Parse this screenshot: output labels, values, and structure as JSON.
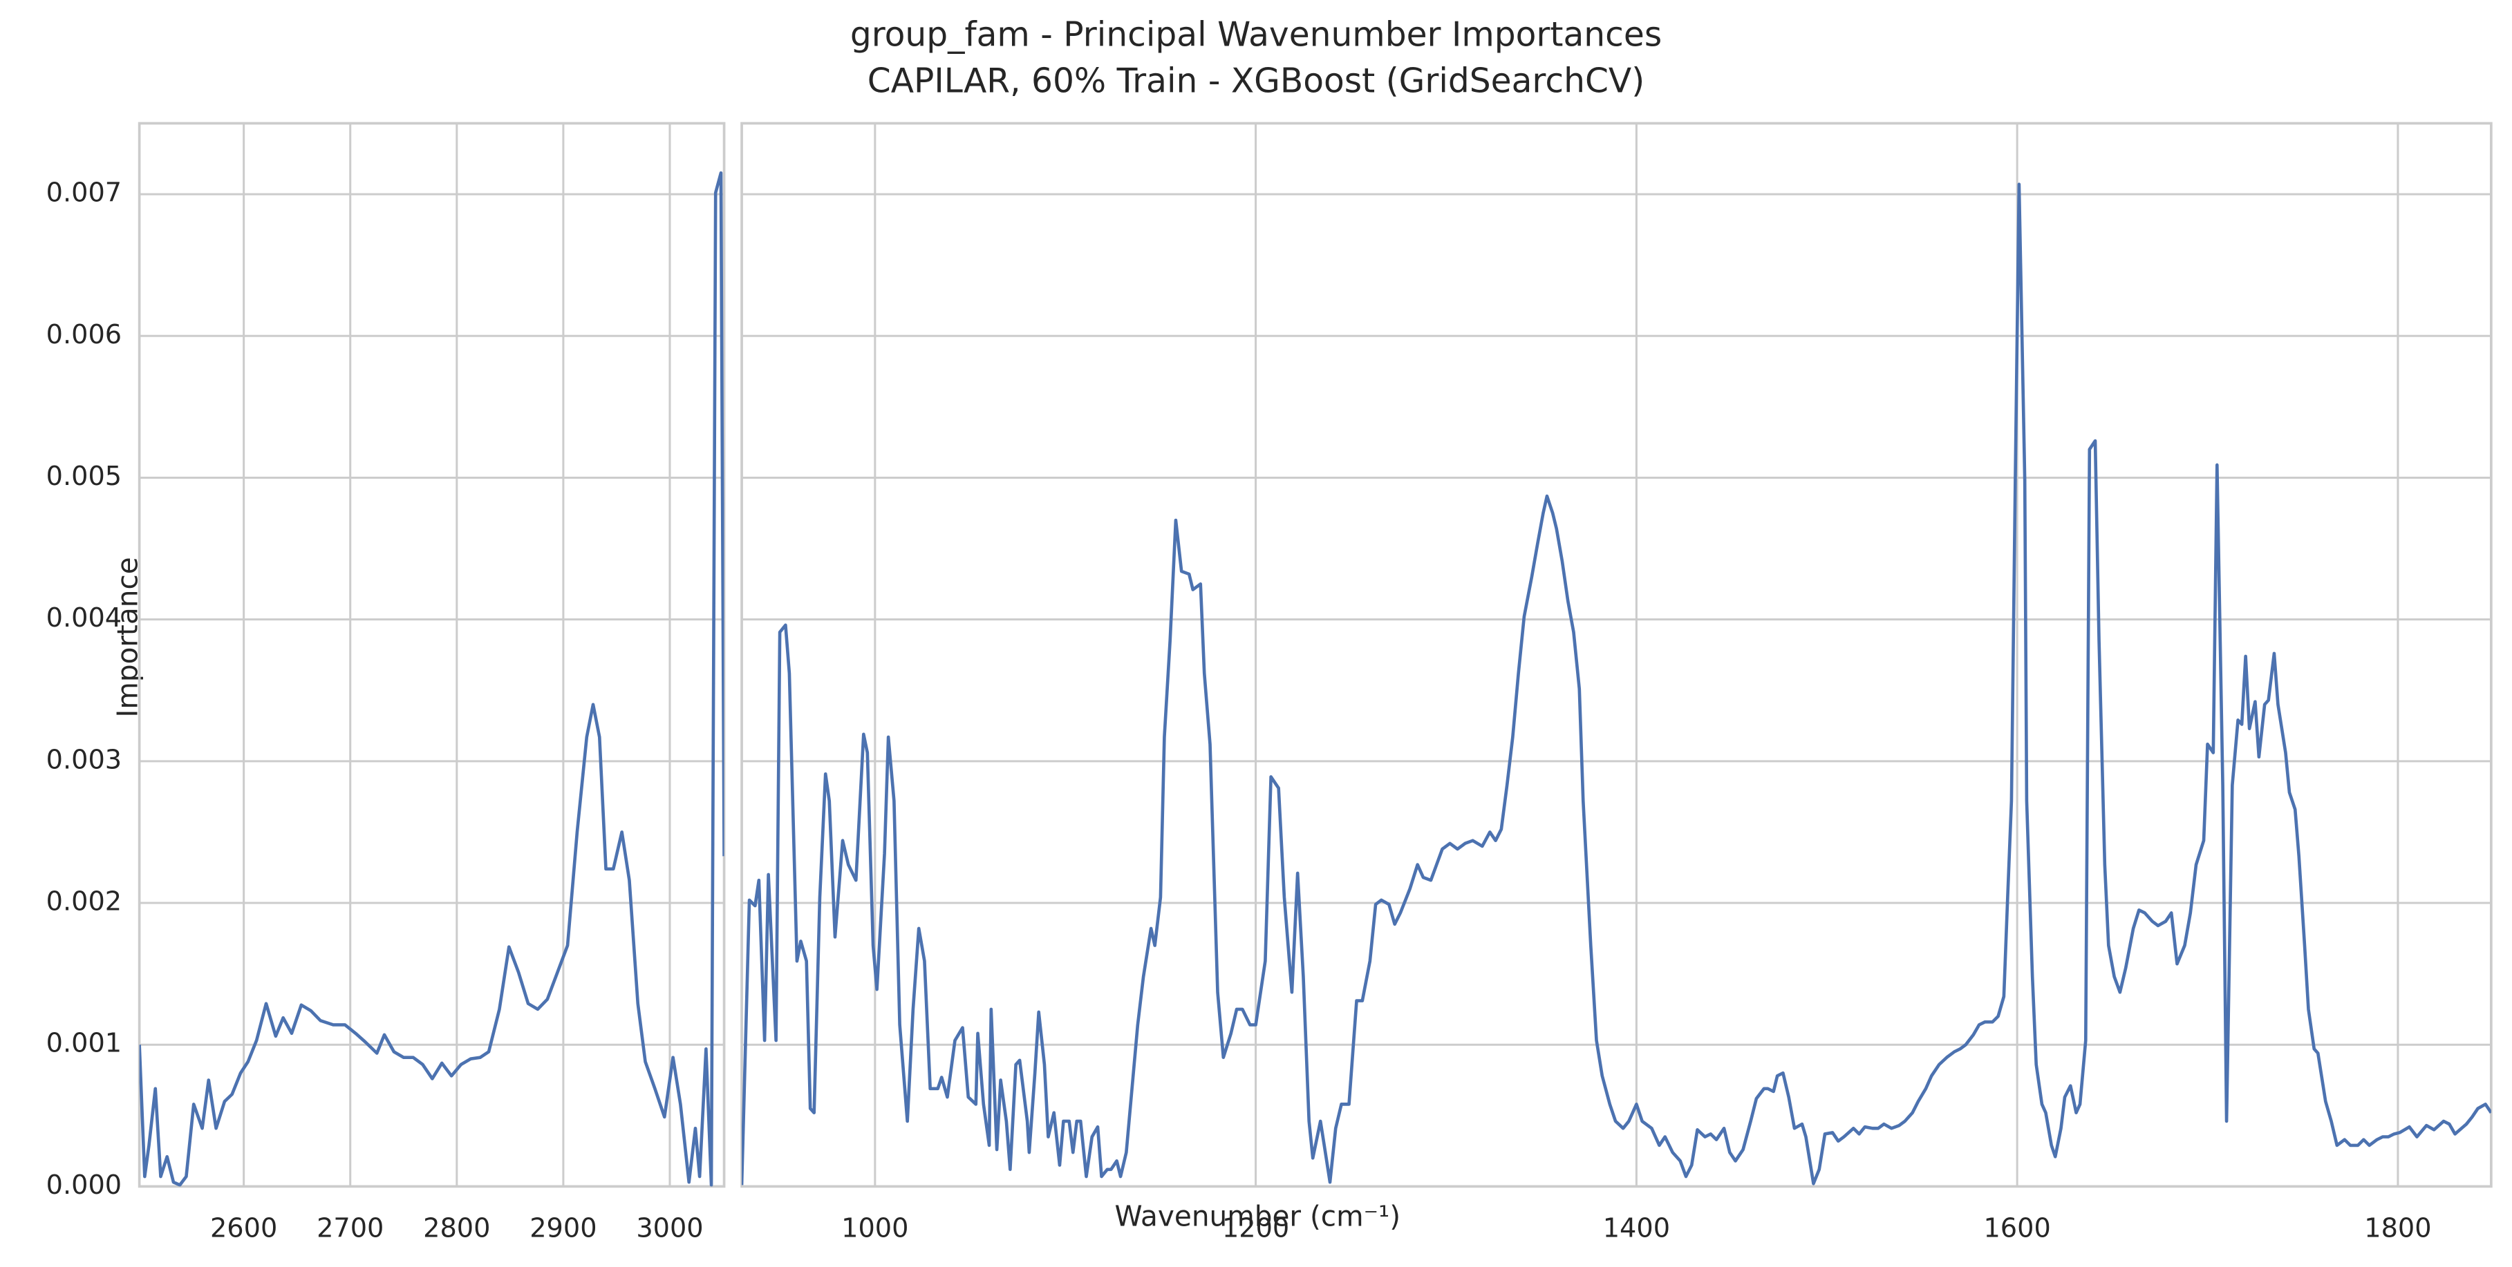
{
  "chart_data": [
    {
      "type": "line",
      "title": "group_fam - Principal Wavenumber Importances",
      "subtitle": "CAPILAR, 60% Train - XGBoost (GridSearchCV)",
      "ylabel": "Importance",
      "xlim": [
        2502,
        3051
      ],
      "xticks": [
        2600,
        2700,
        2800,
        2900,
        3000
      ],
      "ylim": [
        0,
        0.0075
      ],
      "yticks": [
        {
          "value": 0,
          "label": "0.000"
        },
        {
          "value": 0.001,
          "label": "0.001"
        },
        {
          "value": 0.002,
          "label": "0.002"
        },
        {
          "value": 0.003,
          "label": "0.003"
        },
        {
          "value": 0.004,
          "label": "0.004"
        },
        {
          "value": 0.005,
          "label": "0.005"
        },
        {
          "value": 0.006,
          "label": "0.006"
        },
        {
          "value": 0.007,
          "label": "0.007"
        }
      ],
      "grid": true,
      "x": [
        2502,
        2507,
        2511,
        2517,
        2522,
        2528,
        2534,
        2540,
        2546,
        2553,
        2561,
        2567,
        2574,
        2582,
        2589,
        2597,
        2604,
        2612,
        2621,
        2630,
        2637,
        2645,
        2654,
        2663,
        2672,
        2684,
        2695,
        2705,
        2714,
        2725,
        2732,
        2741,
        2750,
        2759,
        2768,
        2777,
        2786,
        2795,
        2804,
        2813,
        2822,
        2830,
        2840,
        2849,
        2858,
        2867,
        2876,
        2885,
        2895,
        2904,
        2913,
        2922,
        2928,
        2934,
        2940,
        2947,
        2955,
        2962,
        2970,
        2977,
        2986,
        2995,
        3003,
        3010,
        3018,
        3024,
        3028,
        3034,
        3039,
        3043,
        3048,
        3051
      ],
      "series": [
        {
          "color": "#4c72b0",
          "values": [
            0.001,
            7e-05,
            0.00029,
            0.00069,
            7e-05,
            0.00021,
            3e-05,
            1e-05,
            7e-05,
            0.00058,
            0.00041,
            0.00075,
            0.00041,
            0.0006,
            0.00065,
            0.0008,
            0.00088,
            0.00103,
            0.00129,
            0.00106,
            0.00119,
            0.00108,
            0.00128,
            0.00124,
            0.00117,
            0.00114,
            0.00114,
            0.00108,
            0.00102,
            0.00094,
            0.00107,
            0.00095,
            0.00091,
            0.00091,
            0.00086,
            0.00076,
            0.00087,
            0.00078,
            0.00086,
            0.0009,
            0.00091,
            0.00095,
            0.00125,
            0.00169,
            0.00151,
            0.00129,
            0.00125,
            0.00132,
            0.00152,
            0.0017,
            0.0025,
            0.00317,
            0.0034,
            0.00317,
            0.00224,
            0.00224,
            0.0025,
            0.00216,
            0.00129,
            0.00088,
            0.00069,
            0.00049,
            0.00091,
            0.00058,
            3e-05,
            0.00041,
            7e-05,
            0.00097,
            1e-05,
            0.00701,
            0.00715,
            0.00233
          ]
        }
      ]
    },
    {
      "type": "line",
      "xlabel": "Wavenumber (cm⁻¹)",
      "xlim": [
        930,
        1849
      ],
      "xticks": [
        1000,
        1200,
        1400,
        1600,
        1800
      ],
      "ylim": [
        0,
        0.0075
      ],
      "yticks": [
        0,
        0.001,
        0.002,
        0.003,
        0.004,
        0.005,
        0.006,
        0.007
      ],
      "grid": true,
      "x": [
        930,
        934,
        937,
        939,
        942,
        944,
        948,
        950,
        953,
        955,
        959,
        961,
        964,
        966,
        968,
        971,
        974,
        976,
        979,
        983,
        986,
        990,
        994,
        996,
        999,
        1001,
        1005,
        1007,
        1010,
        1013,
        1017,
        1020,
        1023,
        1026,
        1029,
        1033,
        1035,
        1038,
        1042,
        1046,
        1049,
        1053,
        1054,
        1057,
        1060,
        1061,
        1064,
        1066,
        1069,
        1071,
        1074,
        1076,
        1080,
        1081,
        1084,
        1086,
        1089,
        1091,
        1094,
        1097,
        1099,
        1102,
        1104,
        1106,
        1108,
        1111,
        1114,
        1117,
        1119,
        1122,
        1124,
        1127,
        1129,
        1132,
        1135,
        1138,
        1141,
        1145,
        1147,
        1150,
        1152,
        1155,
        1158,
        1161,
        1165,
        1167,
        1171,
        1173,
        1176,
        1180,
        1183,
        1187,
        1190,
        1193,
        1197,
        1200,
        1205,
        1208,
        1212,
        1215,
        1219,
        1222,
        1225,
        1228,
        1230,
        1234,
        1236,
        1239,
        1242,
        1245,
        1249,
        1253,
        1256,
        1260,
        1263,
        1266,
        1270,
        1273,
        1276,
        1281,
        1285,
        1288,
        1292,
        1295,
        1298,
        1302,
        1306,
        1310,
        1314,
        1319,
        1323,
        1326,
        1329,
        1332,
        1335,
        1338,
        1341,
        1345,
        1348,
        1351,
        1353,
        1356,
        1358,
        1361,
        1364,
        1367,
        1370,
        1372,
        1376,
        1379,
        1382,
        1386,
        1389,
        1393,
        1396,
        1400,
        1403,
        1408,
        1412,
        1415,
        1419,
        1423,
        1426,
        1429,
        1432,
        1436,
        1439,
        1442,
        1446,
        1449,
        1452,
        1456,
        1460,
        1463,
        1467,
        1469,
        1472,
        1474,
        1477,
        1480,
        1483,
        1487,
        1489,
        1493,
        1496,
        1499,
        1503,
        1506,
        1509,
        1514,
        1517,
        1520,
        1524,
        1527,
        1530,
        1534,
        1538,
        1541,
        1545,
        1548,
        1552,
        1555,
        1559,
        1563,
        1567,
        1570,
        1573,
        1577,
        1580,
        1583,
        1587,
        1590,
        1593,
        1595,
        1597,
        1599,
        1601,
        1604,
        1605,
        1608,
        1610,
        1613,
        1615,
        1618,
        1620,
        1623,
        1625,
        1628,
        1631,
        1633,
        1636,
        1638,
        1641,
        1643,
        1646,
        1648,
        1651,
        1654,
        1657,
        1661,
        1664,
        1667,
        1671,
        1674,
        1678,
        1681,
        1684,
        1688,
        1691,
        1694,
        1698,
        1700,
        1703,
        1705,
        1708,
        1710,
        1713,
        1716,
        1718,
        1720,
        1722,
        1725,
        1727,
        1730,
        1732,
        1735,
        1737,
        1741,
        1743,
        1746,
        1748,
        1751,
        1753,
        1756,
        1758,
        1762,
        1765,
        1768,
        1772,
        1775,
        1779,
        1782,
        1785,
        1789,
        1792,
        1795,
        1798,
        1801,
        1806,
        1810,
        1815,
        1819,
        1824,
        1827,
        1830,
        1836,
        1839,
        1842,
        1846,
        1849
      ],
      "series": [
        {
          "color": "#4c72b0",
          "values": [
            1e-05,
            0.00202,
            0.00198,
            0.00216,
            0.00103,
            0.0022,
            0.00103,
            0.00391,
            0.00396,
            0.00362,
            0.00159,
            0.00173,
            0.00159,
            0.00055,
            0.00052,
            0.00204,
            0.00291,
            0.00272,
            0.00176,
            0.00244,
            0.00227,
            0.00216,
            0.00319,
            0.00306,
            0.0017,
            0.00139,
            0.00235,
            0.00317,
            0.00272,
            0.00114,
            0.00046,
            0.00125,
            0.00182,
            0.00159,
            0.00069,
            0.00069,
            0.00077,
            0.00063,
            0.00103,
            0.00112,
            0.00063,
            0.00058,
            0.00108,
            0.00058,
            0.00029,
            0.00125,
            0.00026,
            0.00075,
            0.00046,
            0.00012,
            0.00086,
            0.00089,
            0.00046,
            0.00024,
            0.0008,
            0.00123,
            0.00086,
            0.00035,
            0.00052,
            0.00015,
            0.00046,
            0.00046,
            0.00024,
            0.00046,
            0.00046,
            7e-05,
            0.00035,
            0.00042,
            7e-05,
            0.00012,
            0.00012,
            0.00018,
            7e-05,
            0.00024,
            0.00069,
            0.00114,
            0.00148,
            0.00182,
            0.0017,
            0.00204,
            0.00317,
            0.00385,
            0.0047,
            0.00434,
            0.00432,
            0.00421,
            0.00425,
            0.00362,
            0.00312,
            0.00137,
            0.00091,
            0.00108,
            0.00125,
            0.00125,
            0.00114,
            0.00114,
            0.00159,
            0.00289,
            0.00281,
            0.00204,
            0.00137,
            0.00221,
            0.00148,
            0.00046,
            0.0002,
            0.00046,
            0.00029,
            3e-05,
            0.00041,
            0.00058,
            0.00058,
            0.00131,
            0.00131,
            0.00159,
            0.00199,
            0.00202,
            0.00199,
            0.00185,
            0.00193,
            0.0021,
            0.00227,
            0.00218,
            0.00216,
            0.00227,
            0.00238,
            0.00242,
            0.00238,
            0.00242,
            0.00244,
            0.0024,
            0.0025,
            0.00244,
            0.00252,
            0.00283,
            0.00317,
            0.00362,
            0.00402,
            0.0043,
            0.00453,
            0.00475,
            0.00487,
            0.00475,
            0.00464,
            0.00441,
            0.00413,
            0.00391,
            0.00351,
            0.00272,
            0.0017,
            0.00103,
            0.00078,
            0.00058,
            0.00046,
            0.00041,
            0.00046,
            0.00058,
            0.00046,
            0.00041,
            0.00029,
            0.00035,
            0.00024,
            0.00018,
            7e-05,
            0.00015,
            0.0004,
            0.00035,
            0.00037,
            0.00033,
            0.00041,
            0.00024,
            0.00018,
            0.00026,
            0.00046,
            0.00062,
            0.00069,
            0.00069,
            0.00067,
            0.00078,
            0.0008,
            0.00063,
            0.00041,
            0.00044,
            0.00035,
            2e-05,
            0.00012,
            0.00037,
            0.00038,
            0.00032,
            0.00035,
            0.00041,
            0.00037,
            0.00042,
            0.00041,
            0.00041,
            0.00044,
            0.00041,
            0.00043,
            0.00046,
            0.00052,
            0.0006,
            0.00069,
            0.00078,
            0.00086,
            0.00091,
            0.00095,
            0.00097,
            0.001,
            0.00107,
            0.00114,
            0.00116,
            0.00116,
            0.0012,
            0.00134,
            0.00204,
            0.00272,
            0.00498,
            0.00707,
            0.00498,
            0.00272,
            0.00148,
            0.00086,
            0.00058,
            0.00052,
            0.00029,
            0.00021,
            0.00041,
            0.00063,
            0.00071,
            0.00052,
            0.00058,
            0.00103,
            0.0052,
            0.00526,
            0.00385,
            0.00227,
            0.0017,
            0.00148,
            0.00137,
            0.00154,
            0.00182,
            0.00195,
            0.00193,
            0.00187,
            0.00184,
            0.00187,
            0.00193,
            0.00157,
            0.0017,
            0.00193,
            0.00227,
            0.00244,
            0.00312,
            0.00306,
            0.00509,
            0.00283,
            0.00046,
            0.00283,
            0.00329,
            0.00326,
            0.00374,
            0.00323,
            0.00342,
            0.00303,
            0.0034,
            0.00343,
            0.00376,
            0.0034,
            0.00306,
            0.00278,
            0.00266,
            0.00233,
            0.0017,
            0.00125,
            0.00097,
            0.00094,
            0.0006,
            0.00046,
            0.00029,
            0.00033,
            0.00029,
            0.00029,
            0.00033,
            0.00029,
            0.00033,
            0.00035,
            0.00035,
            0.00037,
            0.00038,
            0.00042,
            0.00035,
            0.00043,
            0.0004,
            0.00046,
            0.00044,
            0.00037,
            0.00044,
            0.00049,
            0.00055,
            0.00058,
            0.00052
          ]
        }
      ]
    }
  ]
}
